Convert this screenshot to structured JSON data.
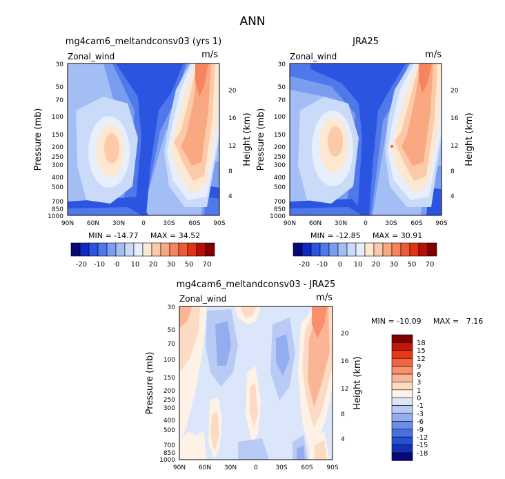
{
  "figure_title": "ANN",
  "chart_data": [
    {
      "type": "heatmap",
      "title": "mg4cam6_meltandconsv03 (yrs 1)",
      "variable_label": "Zonal_wind",
      "units": "m/s",
      "ylabel": "Pressure (mb)",
      "ylabel_right": "Height (km)",
      "xticks": [
        "90N",
        "60N",
        "30N",
        "0",
        "30S",
        "60S",
        "90S"
      ],
      "yticks": [
        "30",
        "50",
        "70",
        "100",
        "150",
        "200",
        "250",
        "300",
        "400",
        "500",
        "700",
        "850",
        "1000"
      ],
      "yticks_right": [
        "4",
        "8",
        "12",
        "16",
        "20"
      ],
      "min_label": "MIN = -14.77",
      "max_label": "MAX = 34.52",
      "colorbar": [
        "-20",
        "-10",
        "0",
        "10",
        "20",
        "30",
        "50",
        "70"
      ]
    },
    {
      "type": "heatmap",
      "title": "JRA25",
      "variable_label": "Zonal_wind",
      "units": "m/s",
      "ylabel": "Pressure (mb)",
      "ylabel_right": "Height (km)",
      "xticks": [
        "90N",
        "60N",
        "30N",
        "0",
        "30S",
        "60S",
        "90S"
      ],
      "yticks": [
        "30",
        "50",
        "70",
        "100",
        "150",
        "200",
        "250",
        "300",
        "400",
        "500",
        "700",
        "850",
        "1000"
      ],
      "yticks_right": [
        "4",
        "8",
        "12",
        "16",
        "20"
      ],
      "min_label": "MIN = -12.85",
      "max_label": "MAX = 30.91",
      "colorbar": [
        "-20",
        "-10",
        "0",
        "10",
        "20",
        "30",
        "50",
        "70"
      ]
    },
    {
      "type": "heatmap",
      "title": "mg4cam6_meltandconsv03 - JRA25",
      "variable_label": "Zonal_wind",
      "units": "m/s",
      "ylabel": "Pressure (mb)",
      "ylabel_right": "Height (km)",
      "xticks": [
        "90N",
        "60N",
        "30N",
        "0",
        "30S",
        "60S",
        "90S"
      ],
      "yticks": [
        "30",
        "50",
        "70",
        "100",
        "150",
        "200",
        "250",
        "300",
        "400",
        "500",
        "700",
        "850",
        "1000"
      ],
      "yticks_right": [
        "4",
        "8",
        "12",
        "16",
        "20"
      ],
      "min_label": "MIN = -10.09",
      "max_label": "MAX =   7.16",
      "colorbar": [
        "18",
        "15",
        "12",
        "9",
        "6",
        "3",
        "1",
        "0",
        "-1",
        "-3",
        "-6",
        "-9",
        "-12",
        "-15",
        "-18"
      ]
    }
  ],
  "palette_main": [
    "#08087a",
    "#1226c4",
    "#2b55e0",
    "#4f79ea",
    "#7a9df0",
    "#a3bdf5",
    "#cadaf9",
    "#e7eefc",
    "#fde8d2",
    "#fccaa9",
    "#f9a882",
    "#f6845f",
    "#ee5a36",
    "#dd3414",
    "#b80f04",
    "#800000"
  ],
  "palette_diff": [
    "#800000",
    "#c21707",
    "#e63a17",
    "#f26343",
    "#f7906b",
    "#fab597",
    "#fcdbc5",
    "#fef1e6",
    "#dce6fb",
    "#b9cbf5",
    "#93adef",
    "#6d8ee8",
    "#4670de",
    "#2450d2",
    "#1430b4",
    "#08087a"
  ]
}
